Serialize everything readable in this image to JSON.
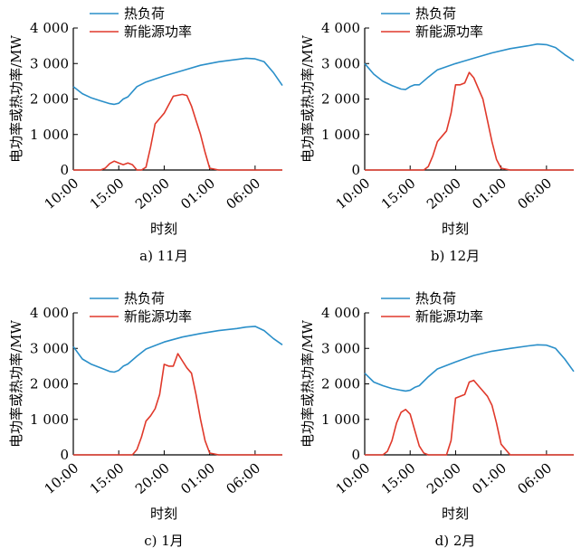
{
  "chart_data": [
    {
      "type": "line",
      "caption": "a) 11月",
      "xlabel": "时刻",
      "ylabel": "电功率或热功率/MW",
      "ylim": [
        0,
        4000
      ],
      "yticks": [
        "0",
        "1 000",
        "2 000",
        "3 000",
        "4 000"
      ],
      "xticks": [
        "10:00",
        "15:00",
        "20:00",
        "01:00",
        "06:00"
      ],
      "series": [
        {
          "name": "热负荷",
          "color": "#2a8fc9",
          "x": [
            0,
            1,
            2,
            3,
            4,
            4.5,
            5,
            5.5,
            6,
            7,
            8,
            10,
            12,
            14,
            16,
            19,
            20,
            21,
            22,
            23
          ],
          "y": [
            2350,
            2150,
            2030,
            1950,
            1870,
            1850,
            1880,
            2000,
            2060,
            2350,
            2480,
            2650,
            2800,
            2950,
            3050,
            3150,
            3130,
            3050,
            2750,
            2380
          ]
        },
        {
          "name": "新能源功率",
          "color": "#e0392b",
          "x": [
            0,
            3,
            3.5,
            4,
            4.5,
            5,
            5.5,
            6,
            6.5,
            7,
            7.5,
            8,
            8.5,
            9,
            10,
            11,
            12,
            12.5,
            13,
            13.5,
            14,
            14.5,
            15,
            16,
            23
          ],
          "y": [
            0,
            0,
            50,
            180,
            250,
            200,
            150,
            200,
            150,
            0,
            0,
            80,
            650,
            1300,
            1600,
            2080,
            2130,
            2100,
            1800,
            1400,
            1000,
            500,
            50,
            0,
            0
          ]
        }
      ]
    },
    {
      "type": "line",
      "caption": "b) 12月",
      "xlabel": "时刻",
      "ylabel": "电功率或热功率/MW",
      "ylim": [
        0,
        4000
      ],
      "yticks": [
        "0",
        "1 000",
        "2 000",
        "3 000",
        "4 000"
      ],
      "xticks": [
        "10:00",
        "15:00",
        "20:00",
        "01:00",
        "06:00"
      ],
      "series": [
        {
          "name": "热负荷",
          "color": "#2a8fc9",
          "x": [
            0,
            1,
            2,
            3,
            4,
            4.5,
            5,
            5.5,
            6,
            7,
            8,
            10,
            12,
            14,
            16,
            18,
            19,
            20,
            21,
            22,
            23
          ],
          "y": [
            3000,
            2700,
            2500,
            2380,
            2280,
            2270,
            2350,
            2400,
            2400,
            2620,
            2820,
            3000,
            3150,
            3300,
            3420,
            3500,
            3550,
            3530,
            3450,
            3250,
            3080
          ]
        },
        {
          "name": "新能源功率",
          "color": "#e0392b",
          "x": [
            0,
            6,
            6.5,
            7,
            7.5,
            8,
            8.5,
            9,
            9.5,
            10,
            10.5,
            11,
            11.5,
            12,
            12.5,
            13,
            13.5,
            14,
            14.5,
            15,
            16,
            23
          ],
          "y": [
            0,
            0,
            0,
            100,
            400,
            800,
            950,
            1100,
            1600,
            2400,
            2400,
            2450,
            2750,
            2600,
            2300,
            2000,
            1400,
            800,
            300,
            50,
            0,
            0
          ]
        }
      ]
    },
    {
      "type": "line",
      "caption": "c) 1月",
      "xlabel": "时刻",
      "ylabel": "电功率或热功率/MW",
      "ylim": [
        0,
        4000
      ],
      "yticks": [
        "0",
        "1 000",
        "2 000",
        "3 000",
        "4 000"
      ],
      "xticks": [
        "10:00",
        "15:00",
        "20:00",
        "01:00",
        "06:00"
      ],
      "series": [
        {
          "name": "热负荷",
          "color": "#2a8fc9",
          "x": [
            0,
            1,
            2,
            3,
            4,
            4.5,
            5,
            5.5,
            6,
            7,
            8,
            10,
            12,
            14,
            16,
            18,
            19,
            20,
            21,
            22,
            23
          ],
          "y": [
            3050,
            2700,
            2550,
            2450,
            2350,
            2330,
            2380,
            2500,
            2560,
            2780,
            2980,
            3180,
            3320,
            3420,
            3500,
            3560,
            3600,
            3620,
            3500,
            3280,
            3100
          ]
        },
        {
          "name": "新能源功率",
          "color": "#e0392b",
          "x": [
            0,
            6,
            6.5,
            7,
            7.5,
            8,
            8.5,
            9,
            9.5,
            10,
            10.5,
            11,
            11.5,
            12,
            12.5,
            13,
            13.5,
            14,
            14.5,
            15,
            16,
            23
          ],
          "y": [
            0,
            0,
            0,
            150,
            500,
            950,
            1100,
            1300,
            1700,
            2550,
            2500,
            2500,
            2850,
            2650,
            2450,
            2300,
            1700,
            1000,
            400,
            50,
            0,
            0
          ]
        }
      ]
    },
    {
      "type": "line",
      "caption": "d) 2月",
      "xlabel": "时刻",
      "ylabel": "电功率或热功率/MW",
      "ylim": [
        0,
        4000
      ],
      "yticks": [
        "0",
        "1 000",
        "2 000",
        "3 000",
        "4 000"
      ],
      "xticks": [
        "10:00",
        "15:00",
        "20:00",
        "01:00",
        "06:00"
      ],
      "series": [
        {
          "name": "热负荷",
          "color": "#2a8fc9",
          "x": [
            0,
            1,
            2,
            3,
            4,
            4.5,
            5,
            5.5,
            6,
            7,
            8,
            10,
            12,
            14,
            16,
            18,
            19,
            20,
            21,
            22,
            23
          ],
          "y": [
            2300,
            2050,
            1950,
            1870,
            1820,
            1800,
            1820,
            1900,
            1950,
            2200,
            2420,
            2620,
            2800,
            2920,
            3000,
            3070,
            3100,
            3090,
            3000,
            2700,
            2350
          ]
        },
        {
          "name": "新能源功率",
          "color": "#e0392b",
          "x": [
            0,
            2,
            2.5,
            3,
            3.5,
            4,
            4.5,
            5,
            5.5,
            6,
            6.5,
            7,
            9,
            9.5,
            10,
            10.5,
            11,
            11.5,
            12,
            12.5,
            13,
            13.5,
            14,
            14.5,
            15,
            16,
            23
          ],
          "y": [
            0,
            0,
            100,
            400,
            900,
            1200,
            1280,
            1150,
            700,
            250,
            50,
            0,
            0,
            400,
            1600,
            1650,
            1700,
            2050,
            2100,
            1950,
            1800,
            1650,
            1400,
            900,
            300,
            0,
            0
          ]
        }
      ]
    }
  ]
}
